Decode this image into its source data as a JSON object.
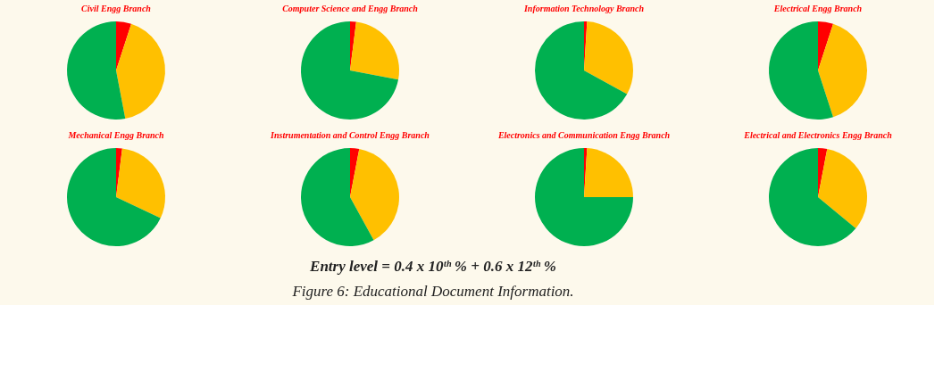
{
  "chart_data": [
    {
      "type": "pie",
      "title": "Civil Engg Branch",
      "categories": [
        null,
        null,
        null
      ],
      "values": [
        5,
        42,
        53
      ],
      "colors": [
        "#ff0000",
        "#ffc000",
        "#00b050"
      ]
    },
    {
      "type": "pie",
      "title": "Computer Science and Engg Branch",
      "categories": [
        null,
        null,
        null
      ],
      "values": [
        2,
        26,
        72
      ],
      "colors": [
        "#ff0000",
        "#ffc000",
        "#00b050"
      ]
    },
    {
      "type": "pie",
      "title": "Information Technology Branch",
      "categories": [
        null,
        null,
        null
      ],
      "values": [
        1,
        32,
        67
      ],
      "colors": [
        "#ff0000",
        "#ffc000",
        "#00b050"
      ]
    },
    {
      "type": "pie",
      "title": "Electrical Engg Branch",
      "categories": [
        null,
        null,
        null
      ],
      "values": [
        5,
        40,
        55
      ],
      "colors": [
        "#ff0000",
        "#ffc000",
        "#00b050"
      ]
    },
    {
      "type": "pie",
      "title": "Mechanical Engg Branch",
      "categories": [
        null,
        null,
        null
      ],
      "values": [
        2,
        30,
        68
      ],
      "colors": [
        "#ff0000",
        "#ffc000",
        "#00b050"
      ]
    },
    {
      "type": "pie",
      "title": "Instrumentation and Control Engg Branch",
      "categories": [
        null,
        null,
        null
      ],
      "values": [
        3,
        39,
        58
      ],
      "colors": [
        "#ff0000",
        "#ffc000",
        "#00b050"
      ]
    },
    {
      "type": "pie",
      "title": "Electronics and Communication Engg Branch",
      "categories": [
        null,
        null,
        null
      ],
      "values": [
        1,
        24,
        75
      ],
      "colors": [
        "#ff0000",
        "#ffc000",
        "#00b050"
      ]
    },
    {
      "type": "pie",
      "title": "Electrical and Electronics Engg Branch",
      "categories": [
        null,
        null,
        null
      ],
      "values": [
        3,
        33,
        64
      ],
      "colors": [
        "#ff0000",
        "#ffc000",
        "#00b050"
      ],
      "annotations": [
        "Entry level = 0.4 x 10ᵗʰ % + 0.6 x 12ᵗʰ %",
        "Figure 6: Educational Document Information."
      ]
    }
  ]
}
